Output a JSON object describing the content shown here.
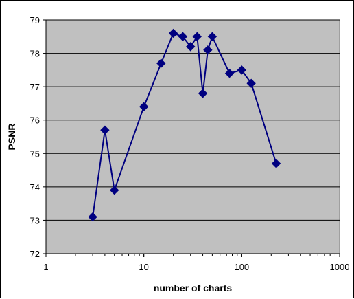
{
  "chart_data": {
    "type": "line",
    "title": "",
    "xlabel": "number of charts",
    "ylabel": "PSNR",
    "x_scale": "log",
    "xlim": [
      1,
      1000
    ],
    "ylim": [
      72,
      79
    ],
    "x_ticks": [
      1,
      10,
      100,
      1000
    ],
    "x_tick_labels": [
      "1",
      "10",
      "100",
      "1000"
    ],
    "y_ticks": [
      72,
      73,
      74,
      75,
      76,
      77,
      78,
      79
    ],
    "y_tick_labels": [
      "72",
      "73",
      "74",
      "75",
      "76",
      "77",
      "78",
      "79"
    ],
    "grid": "horizontal",
    "legend": "none",
    "series": [
      {
        "x": [
          3,
          4,
          5,
          10,
          15,
          20,
          25,
          30,
          35,
          40,
          45,
          50,
          75,
          100,
          125,
          225
        ],
        "y": [
          73.1,
          75.7,
          73.9,
          76.4,
          77.7,
          78.6,
          78.5,
          78.2,
          78.5,
          76.8,
          78.1,
          78.5,
          77.4,
          77.5,
          77.1,
          74.7
        ],
        "marker": "diamond"
      }
    ],
    "colors": {
      "plot_background": "#c0c0c0",
      "series": "#000080",
      "grid": "#000000"
    }
  }
}
